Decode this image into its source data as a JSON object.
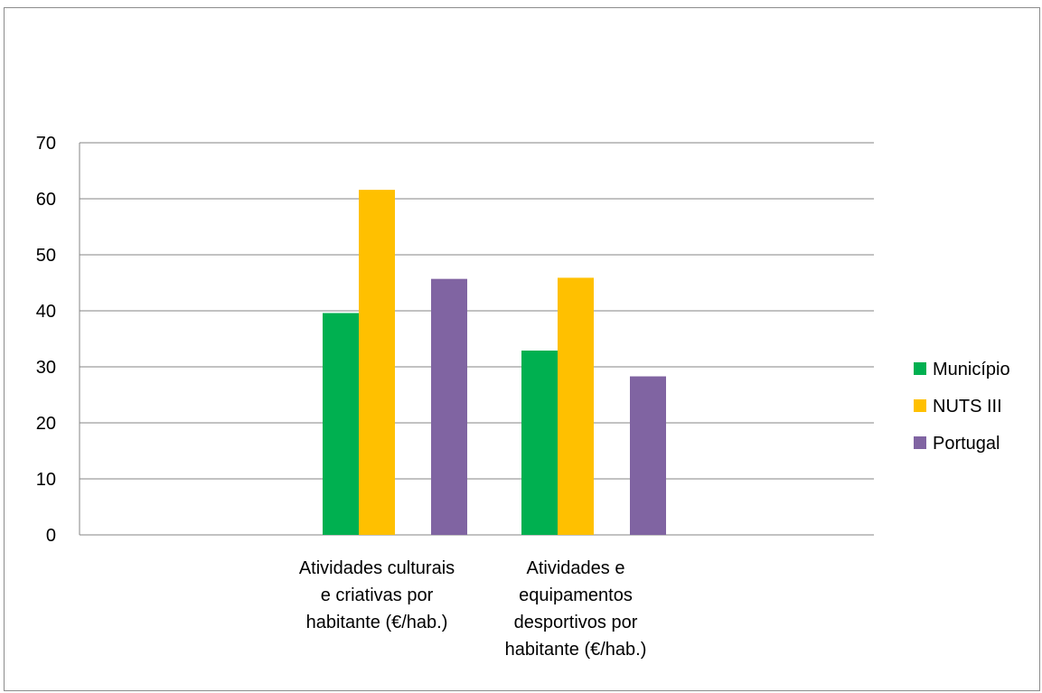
{
  "chart_data": {
    "type": "bar",
    "categories": [
      [
        "Atividades culturais",
        "e criativas por",
        "habitante (€/hab.)"
      ],
      [
        "Atividades e",
        "equipamentos",
        "desportivos por",
        "habitante (€/hab.)"
      ]
    ],
    "series": [
      {
        "name": "Município",
        "color": "#00b050",
        "values": [
          39.6,
          32.9
        ]
      },
      {
        "name": "NUTS III",
        "color": "#ffc000",
        "values": [
          61.6,
          45.9
        ]
      },
      {
        "name": "Portugal",
        "color": "#8064a2",
        "values": [
          45.7,
          28.3
        ]
      }
    ],
    "title": "",
    "xlabel": "",
    "ylabel": "",
    "ylim": [
      0,
      70
    ],
    "yticks": [
      0,
      10,
      20,
      30,
      40,
      50,
      60,
      70
    ],
    "grid": true,
    "legend_position": "right",
    "colors": {
      "gridline": "#868686",
      "axis": "#868686",
      "frame": "#8c8c8c"
    }
  }
}
